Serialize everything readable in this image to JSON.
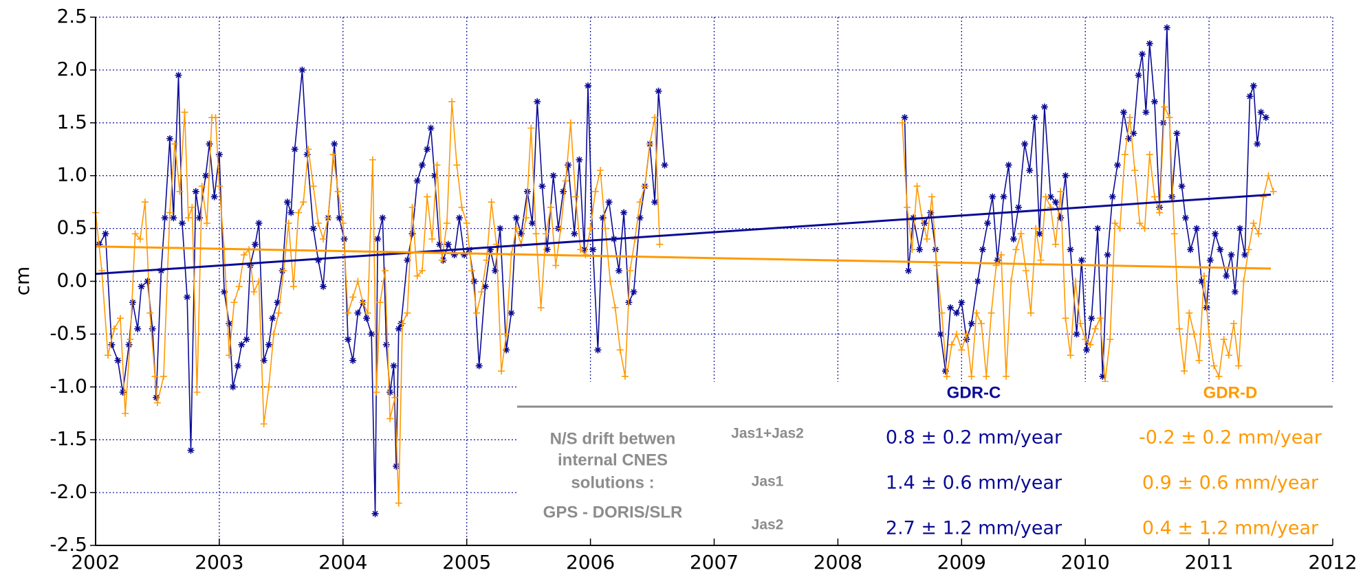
{
  "chart_data": {
    "type": "line",
    "y_label": "cm",
    "xlim": [
      2002,
      2012
    ],
    "xticks": [
      2002,
      2003,
      2004,
      2005,
      2006,
      2007,
      2008,
      2009,
      2010,
      2011,
      2012
    ],
    "ylim": [
      -2.5,
      2.5
    ],
    "yticks": [
      {
        "value": -2.5,
        "label": "-2.5"
      },
      {
        "value": -2,
        "label": "-2.0"
      },
      -1.5,
      {
        "value": -1,
        "label": "-1.0"
      },
      -0.5,
      {
        "value": 0,
        "label": "0.0"
      },
      0.5,
      {
        "value": 1,
        "label": "1.0"
      },
      1.5,
      {
        "value": 2,
        "label": "2.0"
      },
      2.5
    ],
    "grid": true,
    "series": [
      {
        "name": "GDR-C",
        "color": "#0a0a96",
        "marker": "asterisk",
        "x": [
          2002.03,
          2002.08,
          2002.13,
          2002.18,
          2002.22,
          2002.27,
          2002.3,
          2002.34,
          2002.37,
          2002.42,
          2002.46,
          2002.49,
          2002.53,
          2002.56,
          2002.6,
          2002.63,
          2002.67,
          2002.7,
          2002.74,
          2002.77,
          2002.81,
          2002.84,
          2002.89,
          2002.92,
          2002.96,
          2003.0,
          2003.04,
          2003.08,
          2003.11,
          2003.15,
          2003.18,
          2003.22,
          2003.25,
          2003.29,
          2003.32,
          2003.36,
          2003.4,
          2003.43,
          2003.47,
          2003.51,
          2003.55,
          2003.58,
          2003.61,
          2003.67,
          2003.71,
          2003.76,
          2003.8,
          2003.84,
          2003.88,
          2003.93,
          2003.97,
          2004.01,
          2004.04,
          2004.08,
          2004.12,
          2004.16,
          2004.19,
          2004.23,
          2004.26,
          2004.28,
          2004.32,
          2004.35,
          2004.38,
          2004.41,
          2004.43,
          2004.45,
          2004.47,
          2004.52,
          2004.56,
          2004.6,
          2004.64,
          2004.68,
          2004.71,
          2004.74,
          2004.78,
          2004.81,
          2004.85,
          2004.9,
          2004.94,
          2004.98,
          2005.02,
          2005.06,
          2005.1,
          2005.15,
          2005.19,
          2005.23,
          2005.27,
          2005.32,
          2005.36,
          2005.4,
          2005.44,
          2005.49,
          2005.53,
          2005.57,
          2005.61,
          2005.65,
          2005.7,
          2005.74,
          2005.78,
          2005.82,
          2005.87,
          2005.91,
          2005.95,
          2005.98,
          2006.02,
          2006.06,
          2006.1,
          2006.15,
          2006.19,
          2006.23,
          2006.27,
          2006.31,
          2006.35,
          2006.4,
          2006.44,
          2006.48,
          2006.52,
          2006.55,
          2006.6,
          2007.5,
          2008.54,
          2008.57,
          2008.61,
          2008.66,
          2008.7,
          2008.75,
          2008.79,
          2008.83,
          2008.87,
          2008.91,
          2008.96,
          2009.0,
          2009.04,
          2009.08,
          2009.13,
          2009.17,
          2009.21,
          2009.25,
          2009.29,
          2009.34,
          2009.38,
          2009.42,
          2009.46,
          2009.51,
          2009.55,
          2009.59,
          2009.63,
          2009.67,
          2009.72,
          2009.76,
          2009.8,
          2009.84,
          2009.88,
          2009.93,
          2009.97,
          2010.01,
          2010.05,
          2010.1,
          2010.14,
          2010.18,
          2010.22,
          2010.26,
          2010.31,
          2010.35,
          2010.39,
          2010.43,
          2010.46,
          2010.49,
          2010.52,
          2010.56,
          2010.6,
          2010.63,
          2010.66,
          2010.7,
          2010.74,
          2010.78,
          2010.81,
          2010.85,
          2010.9,
          2010.94,
          2010.98,
          2011.01,
          2011.05,
          2011.09,
          2011.14,
          2011.18,
          2011.21,
          2011.25,
          2011.29,
          2011.33,
          2011.36,
          2011.39,
          2011.42,
          2011.46
        ],
        "values": [
          0.35,
          0.45,
          -0.6,
          -0.75,
          -1.05,
          -0.6,
          -0.2,
          -0.45,
          -0.05,
          0.0,
          -0.45,
          -1.1,
          0.1,
          0.6,
          1.35,
          0.6,
          1.95,
          0.55,
          -0.15,
          -1.6,
          0.85,
          0.6,
          1.0,
          1.3,
          0.8,
          1.2,
          -0.1,
          -0.4,
          -1.0,
          -0.8,
          -0.6,
          -0.55,
          0.15,
          0.35,
          0.55,
          -0.75,
          -0.6,
          -0.35,
          -0.2,
          0.1,
          0.75,
          0.65,
          1.25,
          2.0,
          1.2,
          0.5,
          0.2,
          -0.05,
          0.6,
          1.3,
          0.6,
          0.4,
          -0.55,
          -0.75,
          -0.3,
          -0.2,
          -0.35,
          -0.5,
          -2.2,
          0.4,
          0.6,
          -0.6,
          -1.05,
          -0.8,
          -1.75,
          -0.45,
          -0.4,
          0.2,
          0.45,
          0.95,
          1.1,
          1.25,
          1.45,
          1.0,
          0.35,
          0.2,
          0.35,
          0.25,
          0.6,
          0.25,
          0.3,
          0.0,
          -0.8,
          -0.05,
          0.3,
          0.1,
          0.5,
          -0.65,
          -0.3,
          0.6,
          0.45,
          0.85,
          0.55,
          1.7,
          0.9,
          0.3,
          1.0,
          0.5,
          0.85,
          1.1,
          0.45,
          1.15,
          0.3,
          1.85,
          0.3,
          -0.65,
          0.6,
          0.75,
          0.4,
          0.1,
          0.65,
          -0.2,
          -0.1,
          0.6,
          0.9,
          1.3,
          0.75,
          1.8,
          1.1,
          null,
          1.55,
          0.1,
          0.6,
          0.3,
          0.55,
          0.65,
          0.3,
          -0.5,
          -0.85,
          -0.25,
          -0.3,
          -0.2,
          -0.55,
          -0.4,
          0.0,
          0.3,
          0.55,
          0.8,
          0.2,
          0.8,
          1.1,
          0.4,
          0.7,
          1.3,
          1.05,
          1.55,
          0.45,
          1.65,
          0.8,
          0.75,
          0.6,
          1.0,
          0.3,
          -0.5,
          0.2,
          -0.65,
          -0.35,
          0.5,
          -0.9,
          0.25,
          0.8,
          1.1,
          1.6,
          1.35,
          1.4,
          1.95,
          2.15,
          1.6,
          2.25,
          1.7,
          0.7,
          1.5,
          2.4,
          0.8,
          1.4,
          0.9,
          0.6,
          0.3,
          0.5,
          0.0,
          -0.25,
          0.2,
          0.45,
          0.3,
          0.05,
          0.25,
          -0.1,
          0.5,
          0.25,
          1.75,
          1.85,
          1.3,
          1.6,
          1.55
        ],
        "trend": {
          "x": [
            2002,
            2011.5
          ],
          "values": [
            0.07,
            0.82
          ]
        }
      },
      {
        "name": "GDR-D",
        "color": "#ff9900",
        "marker": "plus",
        "x": [
          2002.0,
          2002.05,
          2002.1,
          2002.15,
          2002.2,
          2002.24,
          2002.28,
          2002.32,
          2002.36,
          2002.4,
          2002.44,
          2002.48,
          2002.5,
          2002.55,
          2002.6,
          2002.64,
          2002.68,
          2002.72,
          2002.75,
          2002.78,
          2002.82,
          2002.86,
          2002.9,
          2002.94,
          2002.97,
          2003.0,
          2003.04,
          2003.08,
          2003.12,
          2003.16,
          2003.2,
          2003.24,
          2003.28,
          2003.32,
          2003.36,
          2003.4,
          2003.44,
          2003.48,
          2003.52,
          2003.56,
          2003.6,
          2003.64,
          2003.68,
          2003.72,
          2003.76,
          2003.8,
          2003.84,
          2003.88,
          2003.92,
          2003.96,
          2004.0,
          2004.04,
          2004.08,
          2004.12,
          2004.16,
          2004.2,
          2004.24,
          2004.27,
          2004.3,
          2004.34,
          2004.38,
          2004.42,
          2004.45,
          2004.48,
          2004.52,
          2004.56,
          2004.6,
          2004.64,
          2004.68,
          2004.72,
          2004.76,
          2004.8,
          2004.84,
          2004.88,
          2004.92,
          2004.96,
          2005.0,
          2005.04,
          2005.08,
          2005.12,
          2005.16,
          2005.2,
          2005.24,
          2005.28,
          2005.32,
          2005.36,
          2005.4,
          2005.44,
          2005.48,
          2005.52,
          2005.56,
          2005.6,
          2005.64,
          2005.68,
          2005.72,
          2005.76,
          2005.8,
          2005.84,
          2005.88,
          2005.92,
          2005.96,
          2006.0,
          2006.04,
          2006.08,
          2006.12,
          2006.16,
          2006.2,
          2006.24,
          2006.28,
          2006.32,
          2006.36,
          2006.4,
          2006.44,
          2006.48,
          2006.52,
          2006.56,
          2007.5,
          2008.52,
          2008.56,
          2008.6,
          2008.64,
          2008.68,
          2008.72,
          2008.76,
          2008.8,
          2008.84,
          2008.88,
          2008.92,
          2008.96,
          2009.0,
          2009.04,
          2009.08,
          2009.12,
          2009.16,
          2009.2,
          2009.24,
          2009.28,
          2009.32,
          2009.36,
          2009.4,
          2009.44,
          2009.48,
          2009.52,
          2009.56,
          2009.6,
          2009.64,
          2009.68,
          2009.72,
          2009.76,
          2009.8,
          2009.84,
          2009.88,
          2009.92,
          2009.96,
          2010.0,
          2010.04,
          2010.08,
          2010.12,
          2010.16,
          2010.2,
          2010.24,
          2010.28,
          2010.32,
          2010.36,
          2010.4,
          2010.44,
          2010.48,
          2010.52,
          2010.56,
          2010.6,
          2010.64,
          2010.68,
          2010.72,
          2010.76,
          2010.8,
          2010.84,
          2010.88,
          2010.92,
          2010.96,
          2011.0,
          2011.04,
          2011.08,
          2011.12,
          2011.16,
          2011.2,
          2011.24,
          2011.28,
          2011.32,
          2011.36,
          2011.4,
          2011.44,
          2011.48,
          2011.52
        ],
        "values": [
          0.65,
          0.1,
          -0.7,
          -0.45,
          -0.35,
          -1.25,
          -0.55,
          0.45,
          0.4,
          0.75,
          -0.3,
          -0.9,
          -1.15,
          -0.9,
          0.65,
          1.3,
          0.85,
          1.6,
          0.6,
          0.7,
          -1.05,
          0.9,
          0.55,
          1.55,
          1.55,
          0.9,
          0.3,
          -0.7,
          -0.2,
          -0.05,
          0.25,
          0.3,
          -0.1,
          0.0,
          -1.35,
          -1.0,
          -0.5,
          -0.3,
          0.1,
          0.55,
          -0.05,
          0.65,
          0.75,
          1.25,
          0.9,
          0.55,
          0.4,
          0.6,
          1.2,
          0.85,
          0.55,
          -0.3,
          -0.15,
          0.0,
          -0.2,
          -0.3,
          1.15,
          -1.05,
          -0.2,
          0.1,
          -1.3,
          -1.1,
          -2.1,
          -0.4,
          -0.3,
          0.7,
          0.05,
          0.1,
          0.8,
          0.4,
          1.1,
          0.2,
          0.55,
          1.7,
          1.1,
          0.7,
          0.55,
          0.1,
          -0.3,
          -0.1,
          0.2,
          0.75,
          0.35,
          -0.85,
          -0.5,
          0.25,
          0.5,
          0.35,
          0.6,
          1.45,
          0.45,
          -0.25,
          0.45,
          0.7,
          0.15,
          0.5,
          0.95,
          1.5,
          0.8,
          0.3,
          0.25,
          0.5,
          0.85,
          1.05,
          0.5,
          0.0,
          -0.25,
          -0.65,
          -0.9,
          0.1,
          0.4,
          0.75,
          0.9,
          1.3,
          1.55,
          0.35,
          null,
          1.5,
          0.7,
          0.3,
          0.9,
          0.6,
          0.4,
          0.8,
          0.15,
          -0.3,
          -0.9,
          -0.6,
          -0.5,
          -0.65,
          -0.5,
          -0.9,
          -0.3,
          -0.4,
          -0.9,
          -0.3,
          0.15,
          0.25,
          -0.9,
          0.0,
          0.3,
          0.45,
          0.1,
          -0.3,
          0.5,
          0.2,
          0.8,
          0.7,
          0.35,
          0.85,
          -0.35,
          -0.7,
          0.0,
          -0.4,
          -0.55,
          -0.6,
          -0.45,
          -0.35,
          -0.95,
          -0.55,
          0.55,
          0.5,
          1.2,
          1.55,
          1.05,
          0.55,
          0.5,
          1.2,
          0.8,
          0.65,
          1.65,
          1.55,
          0.45,
          -0.45,
          -0.85,
          -0.3,
          -0.5,
          -0.75,
          0.05,
          -0.5,
          -0.8,
          -0.9,
          -0.55,
          -0.7,
          -0.4,
          -0.8,
          0.0,
          0.3,
          0.55,
          0.45,
          0.8,
          1.0,
          0.85
        ],
        "trend": {
          "x": [
            2002,
            2011.5
          ],
          "values": [
            0.33,
            0.12
          ]
        }
      }
    ],
    "table": {
      "caption": [
        "N/S drift betwen",
        "internal CNES",
        "solutions :",
        "GPS - DORIS/SLR"
      ],
      "rows": [
        {
          "label": "Jas1+Jas2",
          "values": [
            "0.8 ± 0.2 mm/year",
            "-0.2 ± 0.2 mm/year"
          ]
        },
        {
          "label": "Jas1",
          "values": [
            "1.4 ± 0.6 mm/year",
            "0.9 ± 0.6 mm/year"
          ]
        },
        {
          "label": "Jas2",
          "values": [
            "2.7 ± 1.2 mm/year",
            "0.4 ± 1.2 mm/year"
          ]
        }
      ]
    }
  }
}
